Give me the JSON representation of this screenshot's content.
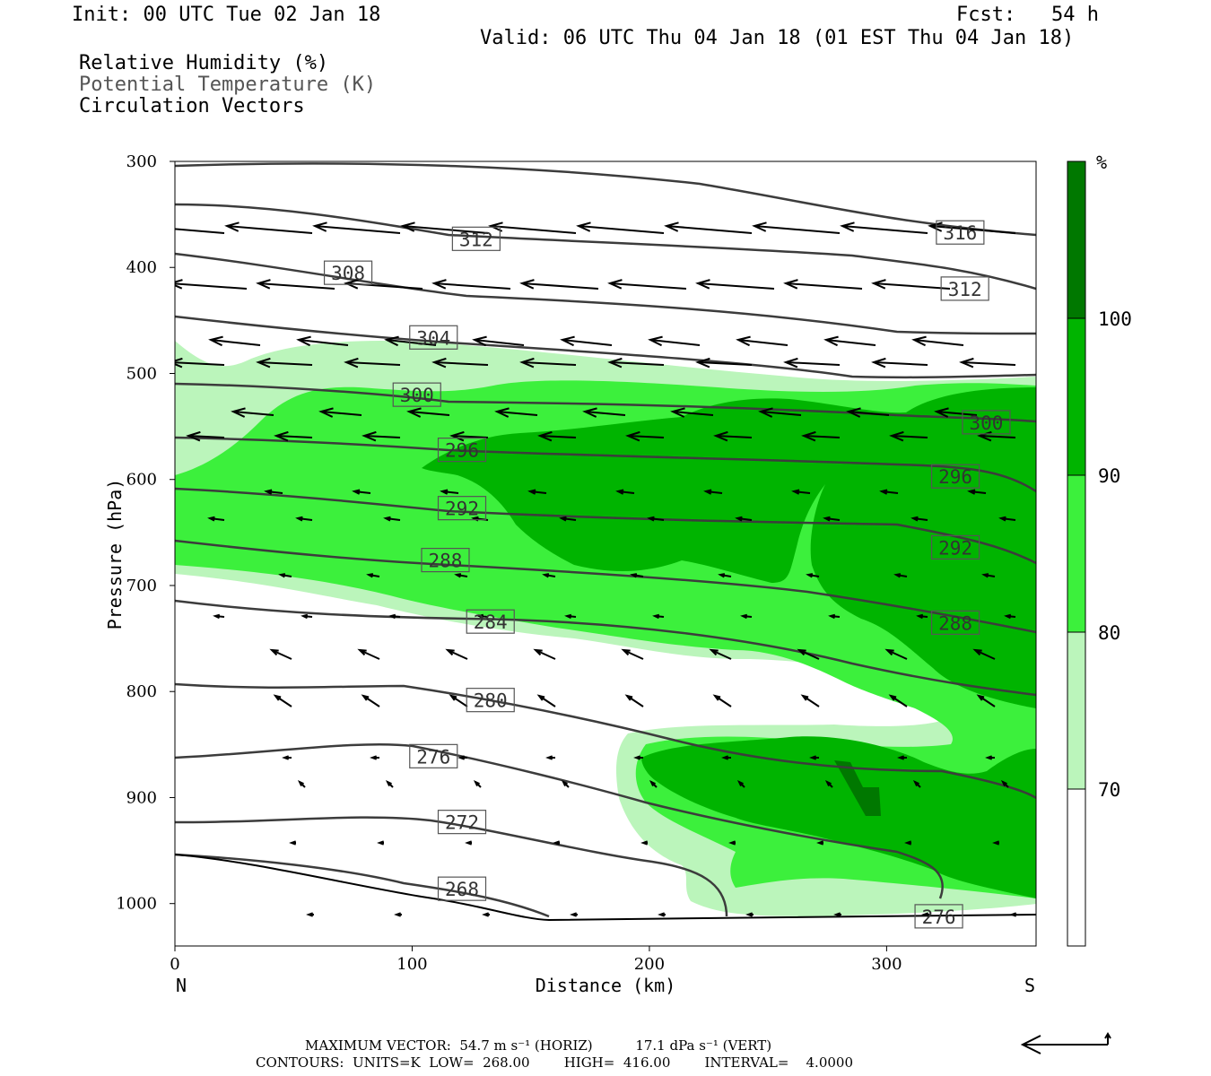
{
  "header": {
    "init": "Init: 00 UTC Tue 02 Jan 18",
    "fcst": "Fcst:   54 h",
    "valid": "Valid: 06 UTC Thu 04 Jan 18 (01 EST Thu 04 Jan 18)"
  },
  "legend_lines": {
    "rh": "Relative Humidity (%)",
    "theta": "Potential Temperature (K)",
    "vectors": "Circulation Vectors"
  },
  "footer": {
    "max_vector": "MAXIMUM VECTOR:  54.7 m s⁻¹ (HORIZ)          17.1 dPa s⁻¹ (VERT)",
    "contours": "CONTOURS:  UNITS=K  LOW=  268.00        HIGH=  416.00        INTERVAL=    4.0000"
  },
  "chart_data": {
    "type": "cross-section",
    "xlabel": "Distance (km)",
    "ylabel": "Pressure (hPa)",
    "x_ticks": [
      "0",
      "100",
      "200",
      "300"
    ],
    "y_ticks": [
      "300",
      "400",
      "500",
      "600",
      "700",
      "800",
      "900",
      "1000"
    ],
    "xlim": [
      0,
      363
    ],
    "ylim": [
      1040,
      300
    ],
    "left_end_label": "N",
    "right_end_label": "S",
    "colorbar": {
      "unit": "%",
      "levels": [
        "70",
        "80",
        "90",
        "100"
      ],
      "colors": [
        "#ffffff",
        "#bbf5bb",
        "#3cf03c",
        "#00b400",
        "#007800"
      ]
    },
    "contour_labels": [
      {
        "value": "316",
        "x": 331,
        "p": 367
      },
      {
        "value": "312",
        "x": 127,
        "p": 373
      },
      {
        "value": "312",
        "x": 333,
        "p": 420
      },
      {
        "value": "308",
        "x": 73,
        "p": 405
      },
      {
        "value": "304",
        "x": 109,
        "p": 466
      },
      {
        "value": "300",
        "x": 102,
        "p": 520
      },
      {
        "value": "300",
        "x": 342,
        "p": 546
      },
      {
        "value": "296",
        "x": 121,
        "p": 572
      },
      {
        "value": "296",
        "x": 329,
        "p": 597
      },
      {
        "value": "292",
        "x": 121,
        "p": 627
      },
      {
        "value": "292",
        "x": 329,
        "p": 664
      },
      {
        "value": "288",
        "x": 114,
        "p": 676
      },
      {
        "value": "288",
        "x": 329,
        "p": 735
      },
      {
        "value": "284",
        "x": 133,
        "p": 734
      },
      {
        "value": "280",
        "x": 133,
        "p": 808
      },
      {
        "value": "276",
        "x": 109,
        "p": 861
      },
      {
        "value": "276",
        "x": 322,
        "p": 1012
      },
      {
        "value": "272",
        "x": 121,
        "p": 923
      },
      {
        "value": "268",
        "x": 121,
        "p": 986
      }
    ]
  }
}
